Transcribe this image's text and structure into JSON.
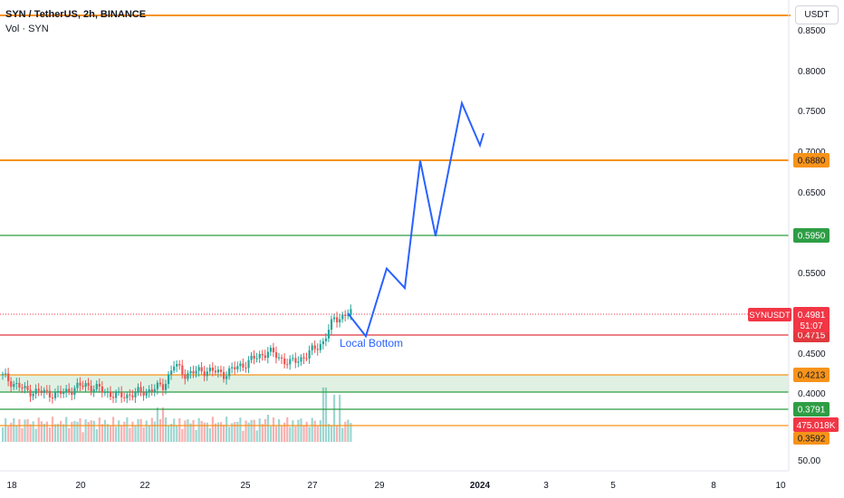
{
  "header": {
    "title": "SYN / TetherUS, 2h, BINANCE",
    "volume_label": "Vol · SYN"
  },
  "price_scale": {
    "currency": "USDT",
    "ticks": [
      "0.8500",
      "0.8000",
      "0.7500",
      "0.7000",
      "0.6500",
      "0.6000",
      "0.5500",
      "0.4500",
      "0.4000",
      "50.00"
    ]
  },
  "time_axis": {
    "ticks": [
      "18",
      "20",
      "22",
      "25",
      "27",
      "29",
      "2024",
      "3",
      "5",
      "8",
      "10"
    ]
  },
  "levels": [
    {
      "label": "0.6880",
      "color": "#f7931a"
    },
    {
      "label": "0.5950",
      "color": "#2e9e45"
    },
    {
      "label": "0.4715",
      "color": "#e0383e"
    },
    {
      "label": "0.4213",
      "color": "#f7931a"
    },
    {
      "label": "0.3791",
      "color": "#2e9e45"
    },
    {
      "label": "0.3592",
      "color": "#f7931a"
    },
    {
      "label": "",
      "color": "#f7931a"
    }
  ],
  "symbol_badge": {
    "symbol": "SYNUSDT",
    "price": "0.4981",
    "countdown": "51:07",
    "color": "#f23645"
  },
  "volume_badge": {
    "value": "475.018K",
    "color": "#f23645"
  },
  "annotation": {
    "text": "Local Bottom",
    "color": "#2962ff"
  },
  "chart_data": {
    "type": "candlestick",
    "title": "SYN / TetherUS, 2h, BINANCE",
    "price_range": [
      0.33,
      0.86
    ],
    "projection": {
      "color": "#2962ff",
      "points_price": [
        0.5,
        0.4715,
        0.555,
        0.531,
        0.688,
        0.595,
        0.759,
        0.707,
        0.722
      ]
    },
    "green_zone": [
      0.4003,
      0.4213
    ]
  }
}
